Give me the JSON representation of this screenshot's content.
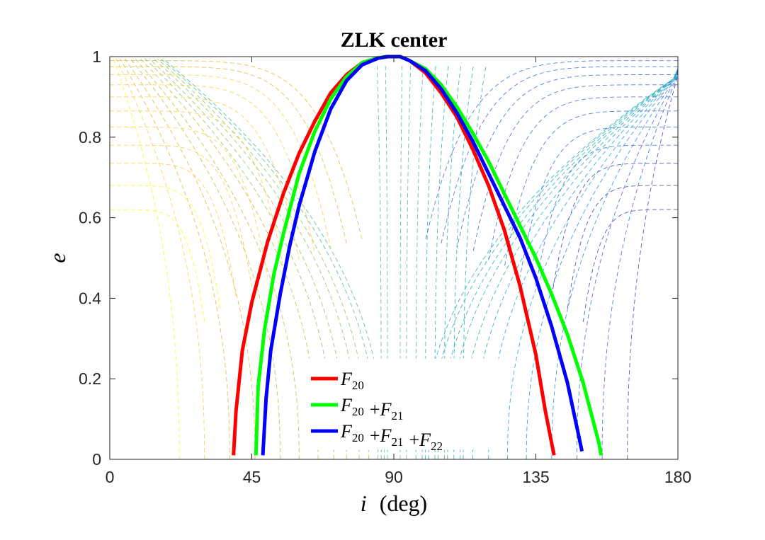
{
  "chart_data": {
    "type": "line",
    "title": "ZLK center",
    "xlabel": {
      "var": "i",
      "unit": "(deg)"
    },
    "ylabel": "e",
    "xlim": [
      0,
      180
    ],
    "ylim": [
      0,
      1
    ],
    "xticks": [
      0,
      45,
      90,
      135,
      180
    ],
    "yticks": [
      0,
      0.2,
      0.4,
      0.6,
      0.8,
      1
    ],
    "ytick_labels": [
      "0",
      "0.2",
      "0.4",
      "0.6",
      "0.8",
      "1"
    ],
    "grid": false,
    "legend_position": "bottom-center",
    "series": [
      {
        "name": "F20",
        "label_parts": [
          {
            "sym": "F",
            "sub": "20"
          }
        ],
        "color": "#ff0000",
        "x": [
          39.2,
          40,
          42,
          45,
          50,
          55,
          60,
          65,
          70,
          75,
          80,
          85,
          88,
          90,
          92,
          95,
          100,
          105,
          110,
          115,
          120,
          125,
          130,
          135,
          138,
          140,
          140.8
        ],
        "y": [
          0.01,
          0.12,
          0.27,
          0.39,
          0.54,
          0.66,
          0.76,
          0.84,
          0.91,
          0.955,
          0.985,
          0.997,
          1.0,
          1.0,
          1.0,
          0.99,
          0.96,
          0.91,
          0.85,
          0.77,
          0.68,
          0.57,
          0.43,
          0.26,
          0.12,
          0.04,
          0.01
        ]
      },
      {
        "name": "F20 + F21",
        "label_parts": [
          {
            "sym": "F",
            "sub": "20"
          },
          {
            "op": "+"
          },
          {
            "sym": "F",
            "sub": "21"
          }
        ],
        "color": "#00ff00",
        "x": [
          46.3,
          47,
          49,
          52,
          55,
          60,
          65,
          70,
          75,
          80,
          85,
          88,
          90,
          92,
          95,
          100,
          105,
          110,
          115,
          120,
          125,
          130,
          135,
          140,
          145,
          150,
          153,
          155,
          155.7
        ],
        "y": [
          0.01,
          0.18,
          0.32,
          0.46,
          0.56,
          0.71,
          0.815,
          0.895,
          0.95,
          0.985,
          0.997,
          1.0,
          1.0,
          1.0,
          0.99,
          0.97,
          0.93,
          0.875,
          0.81,
          0.74,
          0.66,
          0.58,
          0.5,
          0.41,
          0.31,
          0.19,
          0.1,
          0.04,
          0.01
        ]
      },
      {
        "name": "F20 + F21 + F22",
        "label_parts": [
          {
            "sym": "F",
            "sub": "20"
          },
          {
            "op": "+"
          },
          {
            "sym": "F",
            "sub": "21"
          },
          {
            "op": "+"
          },
          {
            "sym": "F",
            "sub": "22"
          }
        ],
        "color": "#0000ff",
        "x": [
          48.5,
          49.5,
          51,
          54,
          57,
          60,
          65,
          70,
          75,
          80,
          85,
          88,
          90,
          92,
          95,
          100,
          105,
          110,
          115,
          120,
          125,
          130,
          135,
          140,
          145,
          148,
          149.6
        ],
        "y": [
          0.01,
          0.15,
          0.27,
          0.41,
          0.53,
          0.63,
          0.765,
          0.87,
          0.94,
          0.98,
          0.996,
          1.0,
          1.0,
          1.0,
          0.99,
          0.965,
          0.92,
          0.86,
          0.79,
          0.71,
          0.63,
          0.55,
          0.45,
          0.33,
          0.19,
          0.08,
          0.02
        ]
      }
    ],
    "contour_background": {
      "style": "dashed",
      "colormap": "parula",
      "colors": [
        "#f9fb0e",
        "#fbcc37",
        "#e3b62d",
        "#c0bc38",
        "#8cc35a",
        "#4abb8a",
        "#1bb0b0",
        "#19a4d6",
        "#2c87f0",
        "#3a66d8",
        "#3e3fae"
      ]
    }
  }
}
